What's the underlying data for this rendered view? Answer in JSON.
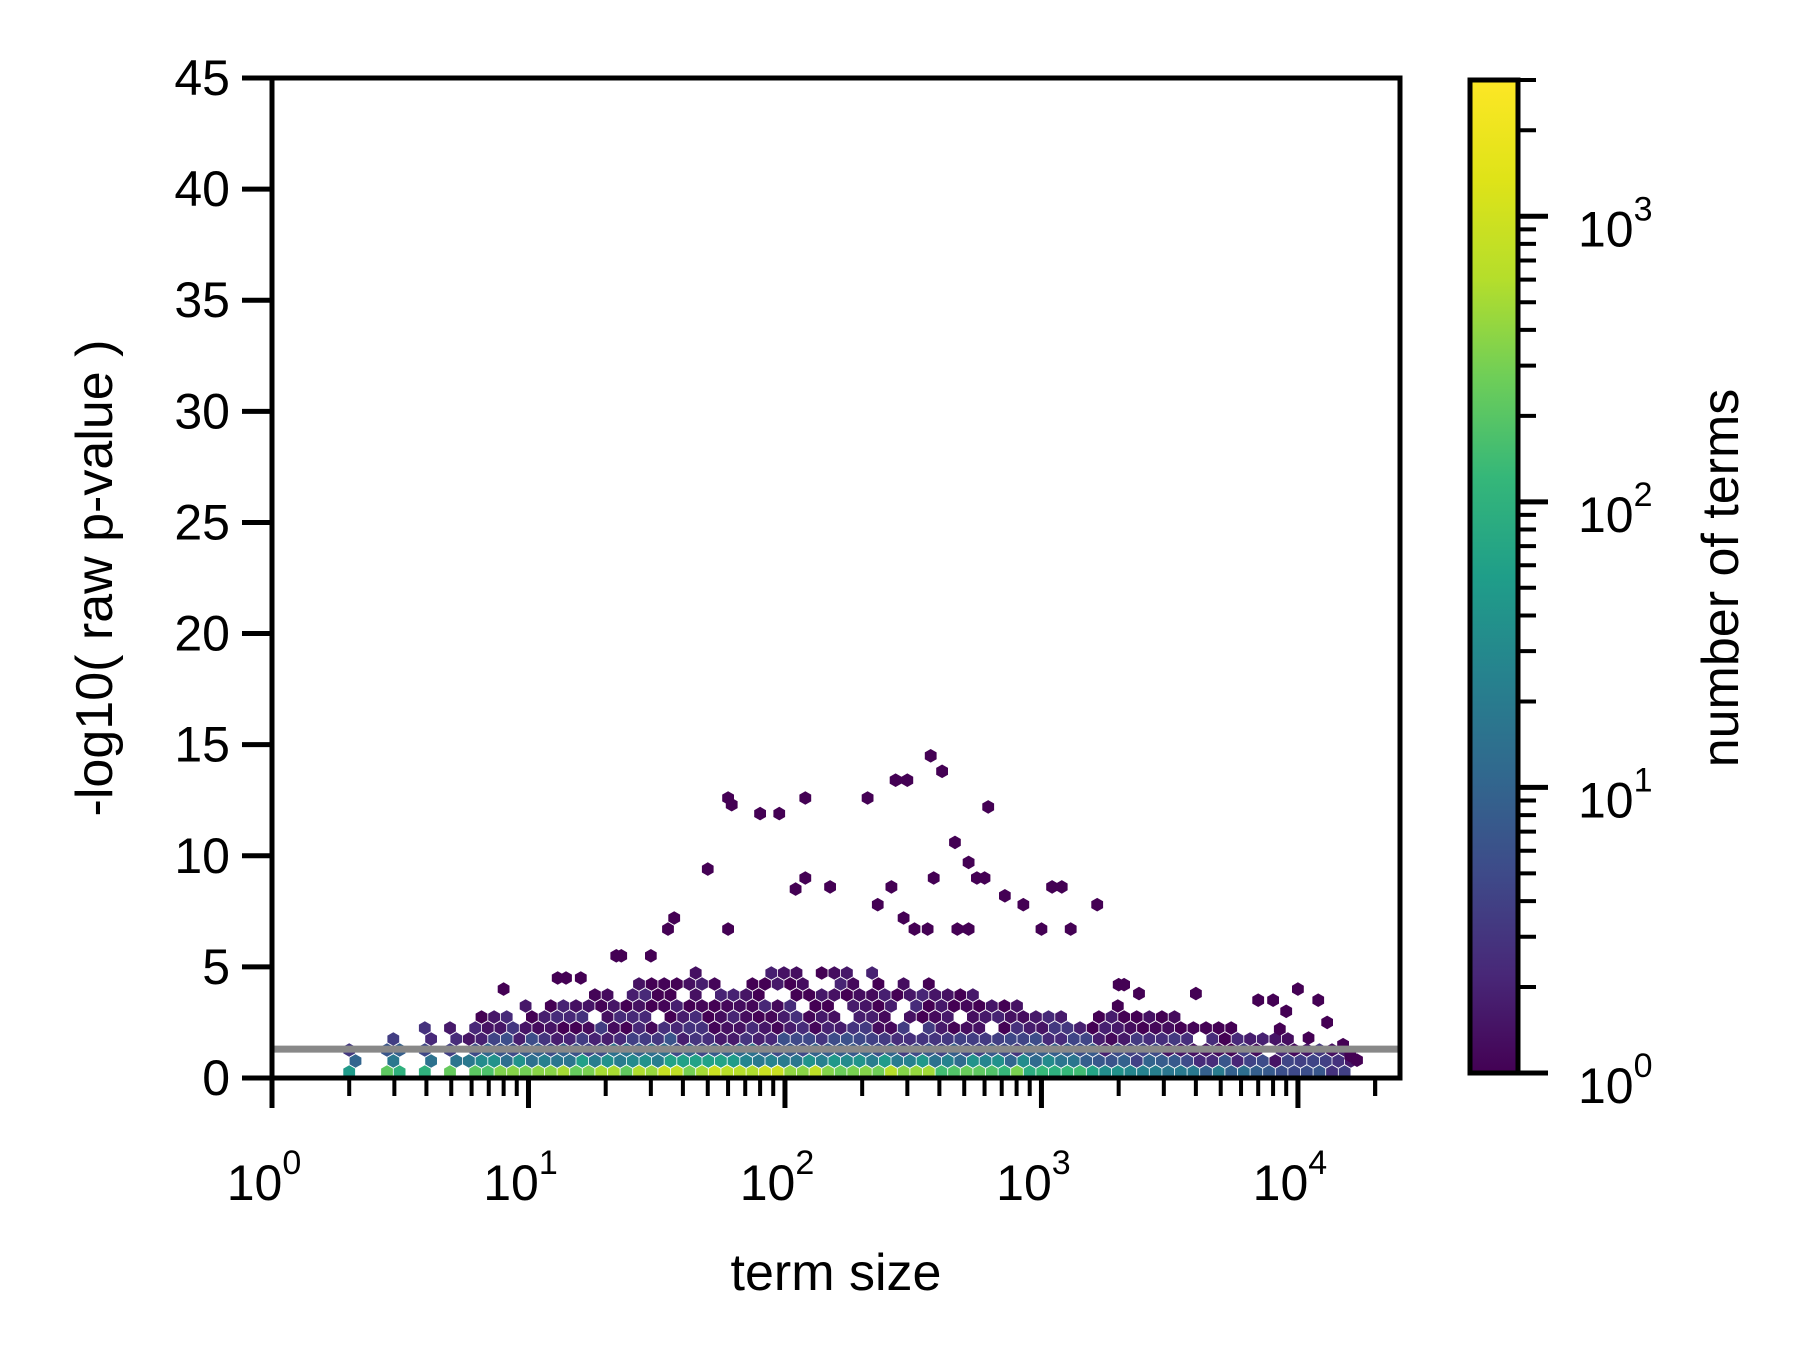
{
  "chart_data": {
    "type": "hexbin",
    "title": "",
    "xlabel": "term size",
    "ylabel": "-log10( raw p-value )",
    "x_scale": "log",
    "xlim": [
      1,
      25000
    ],
    "ylim": [
      0,
      45
    ],
    "x_ticks": [
      {
        "value": 1,
        "base": "10",
        "exp": "0"
      },
      {
        "value": 10,
        "base": "10",
        "exp": "1"
      },
      {
        "value": 100,
        "base": "10",
        "exp": "2"
      },
      {
        "value": 1000,
        "base": "10",
        "exp": "3"
      },
      {
        "value": 10000,
        "base": "10",
        "exp": "4"
      }
    ],
    "y_ticks": [
      "0",
      "5",
      "10",
      "15",
      "20",
      "25",
      "30",
      "35",
      "40",
      "45"
    ],
    "threshold_line": {
      "y": 1.3,
      "color": "#888888"
    },
    "colorbar": {
      "label": "number of terms",
      "scale": "log",
      "range": [
        1,
        3000
      ],
      "colormap": "viridis",
      "ticks": [
        {
          "value": 1,
          "base": "10",
          "exp": "0"
        },
        {
          "value": 10,
          "base": "10",
          "exp": "1"
        },
        {
          "value": 100,
          "base": "10",
          "exp": "2"
        },
        {
          "value": 1000,
          "base": "10",
          "exp": "3"
        }
      ]
    },
    "sparse_points": [
      [
        60,
        12.6
      ],
      [
        62,
        12.3
      ],
      [
        80,
        11.9
      ],
      [
        95,
        11.9
      ],
      [
        120,
        12.6
      ],
      [
        210,
        12.6
      ],
      [
        270,
        13.4
      ],
      [
        300,
        13.4
      ],
      [
        370,
        14.5
      ],
      [
        410,
        13.8
      ],
      [
        620,
        12.2
      ],
      [
        460,
        10.6
      ],
      [
        520,
        9.7
      ],
      [
        50,
        9.4
      ],
      [
        110,
        8.5
      ],
      [
        120,
        9.0
      ],
      [
        150,
        8.6
      ],
      [
        260,
        8.6
      ],
      [
        380,
        9.0
      ],
      [
        560,
        9.0
      ],
      [
        600,
        9.0
      ],
      [
        720,
        8.2
      ],
      [
        850,
        7.8
      ],
      [
        1100,
        8.6
      ],
      [
        1200,
        8.6
      ],
      [
        1650,
        7.8
      ],
      [
        230,
        7.8
      ],
      [
        290,
        7.2
      ],
      [
        320,
        6.7
      ],
      [
        360,
        6.7
      ],
      [
        470,
        6.7
      ],
      [
        520,
        6.7
      ],
      [
        1000,
        6.7
      ],
      [
        1300,
        6.7
      ],
      [
        35,
        6.7
      ],
      [
        37,
        7.2
      ],
      [
        60,
        6.7
      ],
      [
        30,
        5.5
      ],
      [
        23,
        5.5
      ],
      [
        22,
        5.5
      ],
      [
        16,
        4.5
      ],
      [
        14,
        4.5
      ],
      [
        13,
        4.5
      ],
      [
        8,
        4.0
      ],
      [
        2000,
        4.2
      ],
      [
        2100,
        4.2
      ],
      [
        2400,
        3.8
      ],
      [
        4000,
        3.8
      ],
      [
        7000,
        3.5
      ],
      [
        8000,
        3.5
      ],
      [
        10000,
        4.0
      ],
      [
        9000,
        3.0
      ],
      [
        12000,
        3.5
      ],
      [
        13000,
        2.5
      ],
      [
        8500,
        2.2
      ],
      [
        11000,
        1.8
      ],
      [
        15000,
        1.5
      ],
      [
        16000,
        1.0
      ],
      [
        17000,
        0.8
      ]
    ],
    "dense_band": {
      "description_free": true,
      "x_range": [
        2,
        17000
      ],
      "y_range": [
        0,
        5.5
      ]
    }
  }
}
